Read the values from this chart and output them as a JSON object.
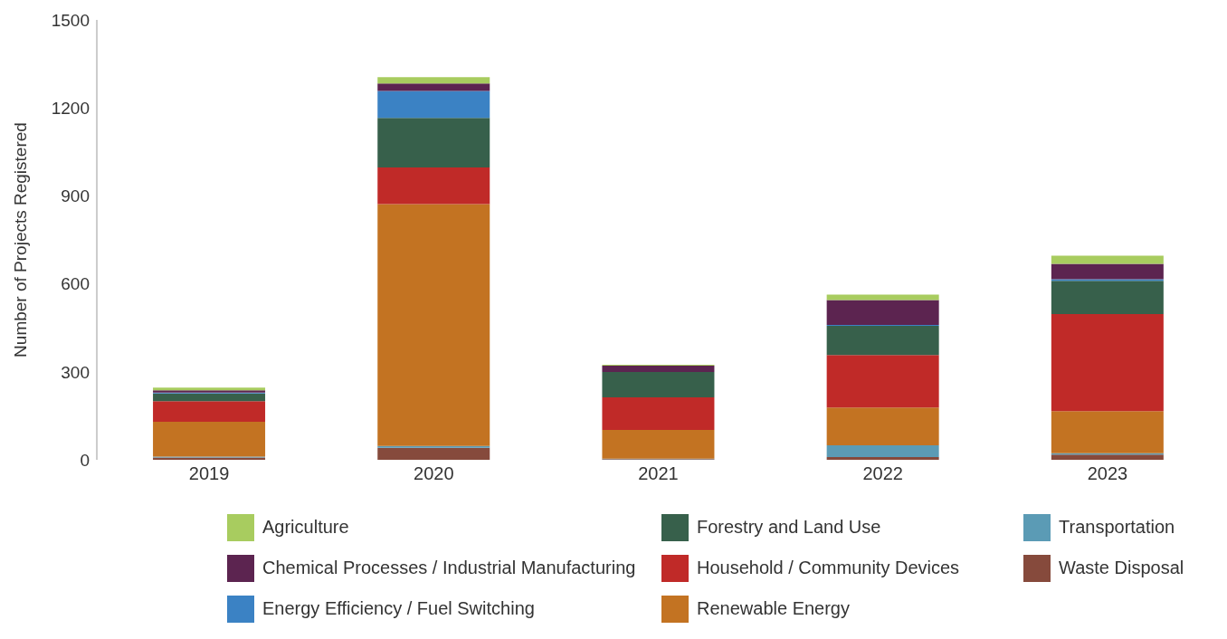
{
  "chart_data": {
    "type": "bar",
    "ylabel": "Number of Projects Registered",
    "categories": [
      "2019",
      "2020",
      "2021",
      "2022",
      "2023"
    ],
    "stacked": true,
    "series": [
      {
        "name": "Waste Disposal",
        "color": "#864a3c",
        "values": [
          8,
          41,
          2,
          9,
          18
        ]
      },
      {
        "name": "Transportation",
        "color": "#5b9bb5",
        "values": [
          3,
          6,
          2,
          40,
          4
        ]
      },
      {
        "name": "Renewable Energy",
        "color": "#c37322",
        "values": [
          119,
          825,
          98,
          129,
          144
        ]
      },
      {
        "name": "Household / Community Devices",
        "color": "#c02a28",
        "values": [
          70,
          125,
          111,
          179,
          331
        ]
      },
      {
        "name": "Forestry and Land Use",
        "color": "#37604b",
        "values": [
          26,
          169,
          86,
          100,
          113
        ]
      },
      {
        "name": "Energy Efficiency / Fuel Switching",
        "color": "#3b82c4",
        "values": [
          3,
          92,
          0,
          3,
          6
        ]
      },
      {
        "name": "Chemical Processes / Industrial Manufacturing",
        "color": "#5c2450",
        "values": [
          8,
          25,
          22,
          85,
          52
        ]
      },
      {
        "name": "Agriculture",
        "color": "#a8cc5f",
        "values": [
          9,
          22,
          3,
          18,
          28
        ]
      }
    ],
    "ylim": [
      0,
      1500
    ],
    "yticks": [
      0,
      300,
      600,
      900,
      1200,
      1500
    ],
    "grid": false,
    "legend": "bottom"
  }
}
